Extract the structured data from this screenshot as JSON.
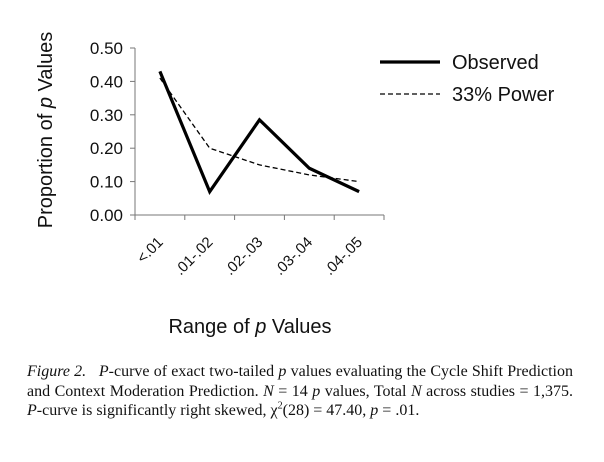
{
  "chart_data": {
    "type": "line",
    "categories": [
      "<.01",
      ".01-.02",
      ".02-.03",
      ".03-.04",
      ".04-.05"
    ],
    "series": [
      {
        "name": "Observed",
        "values": [
          0.43,
          0.07,
          0.285,
          0.14,
          0.07
        ],
        "style": "solid",
        "color": "#000000"
      },
      {
        "name": "33% Power",
        "values": [
          0.41,
          0.2,
          0.15,
          0.12,
          0.1
        ],
        "style": "dashed",
        "color": "#000000"
      }
    ],
    "xlabel_pre": "Range of ",
    "xlabel_var": "p",
    "xlabel_post": " Values",
    "ylabel_pre": "Proportion of ",
    "ylabel_var": "p",
    "ylabel_post": " Values",
    "ylim": [
      0,
      0.5
    ],
    "yticks": [
      "0.00",
      "0.10",
      "0.20",
      "0.30",
      "0.40",
      "0.50"
    ],
    "legend_position": "top-right",
    "grid": false
  },
  "caption": {
    "fig_label": "Figure 2.",
    "p_italic": "P",
    "t1": "-curve of exact two-tailed ",
    "p2": "p",
    "t2": " values evaluating the Cycle Shift Prediction and Context Moderation Prediction. ",
    "N1": "N",
    "t3": " = 14 ",
    "p3": "p",
    "t4": " values, Total ",
    "N2": "N",
    "t5": " across studies = 1,375. ",
    "p4": "P",
    "t6": "-curve is significantly right skewed, χ",
    "sup": "2",
    "t7": "(28) = 47.40, ",
    "p5": "p",
    "t8": " = .01."
  }
}
